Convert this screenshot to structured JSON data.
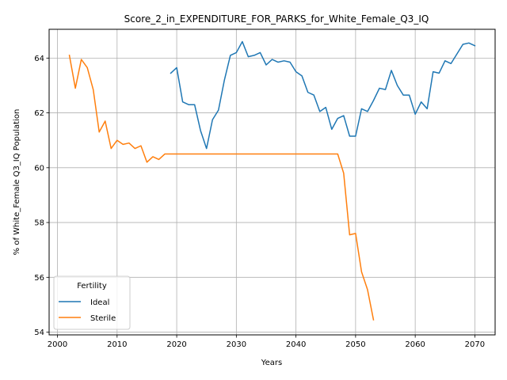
{
  "chart_data": {
    "type": "line",
    "title": "Score_2_in_EXPENDITURE_FOR_PARKS_for_White_Female_Q3_IQ",
    "xlabel": "Years",
    "ylabel": "% of White_Female Q3_IQ Population",
    "xlim": [
      1998.6,
      2073.4
    ],
    "ylim": [
      53.9,
      65.05
    ],
    "xticks": [
      2000,
      2010,
      2020,
      2030,
      2040,
      2050,
      2060,
      2070
    ],
    "yticks": [
      54,
      56,
      58,
      60,
      62,
      64
    ],
    "grid": true,
    "legend": {
      "title": "Fertility",
      "placement": "lower-left"
    },
    "series": [
      {
        "name": "Ideal",
        "color": "#1f77b4",
        "x": [
          2019,
          2020,
          2021,
          2022,
          2023,
          2024,
          2025,
          2026,
          2027,
          2028,
          2029,
          2030,
          2031,
          2032,
          2033,
          2034,
          2035,
          2036,
          2037,
          2038,
          2039,
          2040,
          2041,
          2042,
          2043,
          2044,
          2045,
          2046,
          2047,
          2048,
          2049,
          2050,
          2051,
          2052,
          2053,
          2054,
          2055,
          2056,
          2057,
          2058,
          2059,
          2060,
          2061,
          2062,
          2063,
          2064,
          2065,
          2066,
          2067,
          2068,
          2069,
          2070
        ],
        "values": [
          63.45,
          63.65,
          62.4,
          62.3,
          62.3,
          61.35,
          60.7,
          61.75,
          62.1,
          63.2,
          64.1,
          64.2,
          64.6,
          64.05,
          64.1,
          64.2,
          63.75,
          63.95,
          63.85,
          63.9,
          63.85,
          63.5,
          63.35,
          62.75,
          62.65,
          62.05,
          62.2,
          61.4,
          61.8,
          61.9,
          61.15,
          61.15,
          62.15,
          62.05,
          62.45,
          62.9,
          62.85,
          63.55,
          63.0,
          62.65,
          62.65,
          61.95,
          62.4,
          62.15,
          63.5,
          63.45,
          63.9,
          63.8,
          64.15,
          64.5,
          64.55,
          64.45
        ]
      },
      {
        "name": "Sterile",
        "color": "#ff7f0e",
        "x": [
          2002,
          2003,
          2004,
          2005,
          2006,
          2007,
          2008,
          2009,
          2010,
          2011,
          2012,
          2013,
          2014,
          2015,
          2016,
          2017,
          2018,
          2019,
          2020,
          2021,
          2022,
          2023,
          2024,
          2025,
          2026,
          2027,
          2028,
          2029,
          2030,
          2031,
          2032,
          2033,
          2034,
          2035,
          2036,
          2037,
          2038,
          2039,
          2040,
          2041,
          2042,
          2043,
          2044,
          2045,
          2046,
          2047,
          2048,
          2049,
          2050,
          2051,
          2052,
          2053
        ],
        "values": [
          64.1,
          62.9,
          63.95,
          63.65,
          62.85,
          61.3,
          61.7,
          60.7,
          61.0,
          60.85,
          60.9,
          60.7,
          60.8,
          60.2,
          60.4,
          60.3,
          60.5,
          60.5,
          60.5,
          60.5,
          60.5,
          60.5,
          60.5,
          60.5,
          60.5,
          60.5,
          60.5,
          60.5,
          60.5,
          60.5,
          60.5,
          60.5,
          60.5,
          60.5,
          60.5,
          60.5,
          60.5,
          60.5,
          60.5,
          60.5,
          60.5,
          60.5,
          60.5,
          60.5,
          60.5,
          60.5,
          59.8,
          57.55,
          57.6,
          56.2,
          55.55,
          54.45
        ]
      }
    ]
  }
}
